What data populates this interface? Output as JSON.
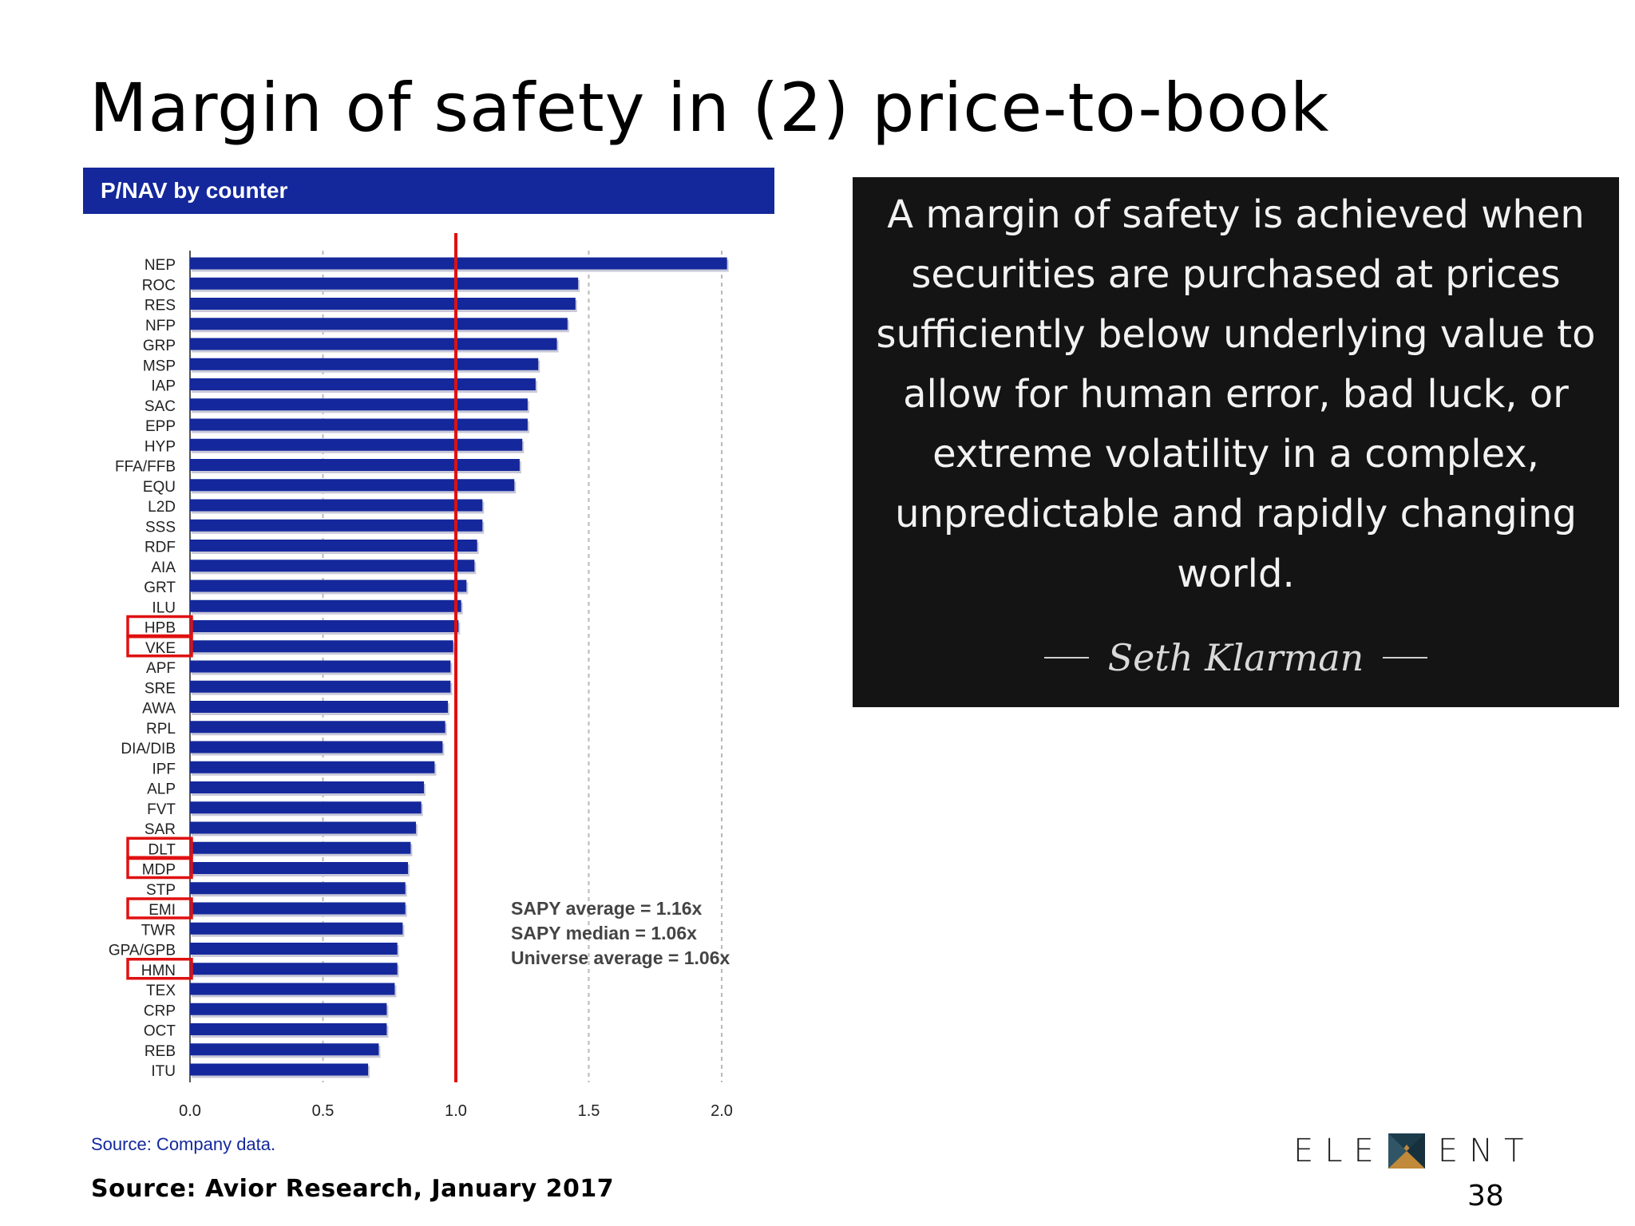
{
  "slide": {
    "title": "Margin of safety in (2) price-to-book",
    "source": "Source: Avior Research, January 2017",
    "page_number": "38",
    "logo_text_left": "ELE",
    "logo_text_right": "ENT"
  },
  "quote": {
    "text": "A margin of safety is achieved when securities are purchased at prices sufficiently below underlying value to allow for human error, bad luck, or extreme volatility in a complex, unpredictable and rapidly changing world.",
    "author": "Seth Klarman"
  },
  "chart_data": {
    "type": "bar",
    "orientation": "horizontal",
    "title": "P/NAV by counter",
    "source_note": "Source: Company data.",
    "categories": [
      "NEP",
      "ROC",
      "RES",
      "NFP",
      "GRP",
      "MSP",
      "IAP",
      "SAC",
      "EPP",
      "HYP",
      "FFA/FFB",
      "EQU",
      "L2D",
      "SSS",
      "RDF",
      "AIA",
      "GRT",
      "ILU",
      "HPB",
      "VKE",
      "APF",
      "SRE",
      "AWA",
      "RPL",
      "DIA/DIB",
      "IPF",
      "ALP",
      "FVT",
      "SAR",
      "DLT",
      "MDP",
      "STP",
      "EMI",
      "TWR",
      "GPA/GPB",
      "HMN",
      "TEX",
      "CRP",
      "OCT",
      "REB",
      "ITU"
    ],
    "values": [
      2.02,
      1.46,
      1.45,
      1.42,
      1.38,
      1.31,
      1.3,
      1.27,
      1.27,
      1.25,
      1.24,
      1.22,
      1.1,
      1.1,
      1.08,
      1.07,
      1.04,
      1.02,
      1.01,
      0.99,
      0.98,
      0.98,
      0.97,
      0.96,
      0.95,
      0.92,
      0.88,
      0.87,
      0.85,
      0.83,
      0.82,
      0.81,
      0.81,
      0.8,
      0.78,
      0.78,
      0.77,
      0.74,
      0.74,
      0.71,
      0.67
    ],
    "highlighted": [
      "HPB",
      "VKE",
      "DLT",
      "MDP",
      "EMI",
      "HMN"
    ],
    "xlim": [
      0,
      2.0
    ],
    "xticks": [
      "0.0",
      "0.5",
      "1.0",
      "1.5",
      "2.0"
    ],
    "reference_line": 1.0,
    "bar_color": "#14289c",
    "reference_color": "#e01010",
    "highlight_color": "#e01010",
    "annotations": [
      "SAPY average = 1.16x",
      "SAPY median = 1.06x",
      "Universe average = 1.06x"
    ]
  }
}
